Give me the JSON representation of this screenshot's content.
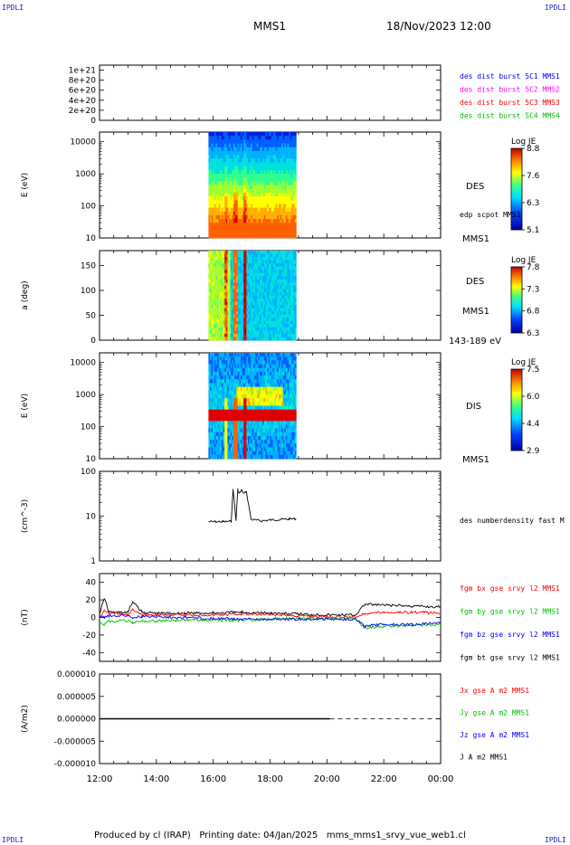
{
  "corner_labels": [
    "IPDLI",
    "IPDLI",
    "IPDLI",
    "IPDLI"
  ],
  "header": {
    "spacecraft": "MMS1",
    "datetime": "18/Nov/2023 12:00"
  },
  "footer": {
    "text": "Produced by cl (IRAP)   Printing date: 04/Jan/2025   mms_mms1_srvy_vue_web1.cl"
  },
  "colors": {
    "c1": "#0000ff",
    "c2": "#ff00ff",
    "c3": "#ff0000",
    "c4": "#00c000",
    "bx": "#ff0000",
    "by": "#00c000",
    "bz": "#0000ff",
    "bt": "#000000"
  },
  "chart_data": [
    {
      "type": "line",
      "panel": "dist-burst",
      "ylim": [
        0,
        1.1e+21
      ],
      "yticks": [
        "0",
        "2e+20",
        "4e+20",
        "6e+20",
        "8e+20",
        "1e+21"
      ],
      "series": [
        {
          "name": "des dist burst 5C1 MMS1"
        },
        {
          "name": "des dist burst 5C2 MMS2"
        },
        {
          "name": "des dist burst 5C3 MMS3"
        },
        {
          "name": "des dist burst 5C4 MMS4"
        }
      ]
    },
    {
      "type": "heatmap",
      "panel": "des-energy",
      "ylabel": "E (eV)",
      "yscale": "log",
      "ylim": [
        10,
        20000
      ],
      "yticks": [
        "10",
        "100",
        "1000",
        "10000"
      ],
      "x_coverage": [
        "15:50",
        "18:55"
      ],
      "label": "DES",
      "sublabel": "edp scpot MMS1",
      "footer_label": "MMS1",
      "colorbar": {
        "title": "Log JE",
        "ticks": [
          "8.8",
          "7.6",
          "6.3",
          "5.1"
        ]
      }
    },
    {
      "type": "heatmap",
      "panel": "des-pitch",
      "ylabel": "a (deg)",
      "ylim": [
        0,
        180
      ],
      "yticks": [
        "0",
        "50",
        "100",
        "150"
      ],
      "x_coverage": [
        "15:50",
        "18:55"
      ],
      "label": "DES",
      "sublabel": "MMS1",
      "footer_label": "143-189 eV",
      "colorbar": {
        "title": "Log JE",
        "ticks": [
          "7.8",
          "7.3",
          "6.8",
          "6.3"
        ]
      }
    },
    {
      "type": "heatmap",
      "panel": "dis-energy",
      "ylabel": "E (eV)",
      "yscale": "log",
      "ylim": [
        10,
        20000
      ],
      "yticks": [
        "10",
        "100",
        "1000",
        "10000"
      ],
      "x_coverage": [
        "15:50",
        "18:55"
      ],
      "label": "DIS",
      "footer_label": "MMS1",
      "colorbar": {
        "title": "Log JE",
        "ticks": [
          "7.5",
          "6.0",
          "4.4",
          "2.9"
        ]
      }
    },
    {
      "type": "line",
      "panel": "density",
      "ylabel": "(cm^-3)",
      "yscale": "log",
      "ylim": [
        1,
        100
      ],
      "yticks": [
        "1",
        "10",
        "100"
      ],
      "series": [
        {
          "name": "des numberdensity fast M",
          "x": [
            "15:50",
            "16:20",
            "16:38",
            "16:42",
            "16:48",
            "16:52",
            "16:55",
            "17:00",
            "17:05",
            "17:10",
            "17:20",
            "17:40",
            "18:00",
            "18:20",
            "18:40",
            "18:55"
          ],
          "y": [
            7.5,
            7.5,
            7.6,
            40,
            8,
            40,
            32,
            38,
            32,
            35,
            8.5,
            7.8,
            8.2,
            8.4,
            8.6,
            8.8
          ]
        }
      ]
    },
    {
      "type": "line",
      "panel": "fgm",
      "ylabel": "(nT)",
      "ylim": [
        -50,
        50
      ],
      "yticks": [
        "-40",
        "-20",
        "0",
        "20",
        "40"
      ],
      "series": [
        {
          "name": "fgm bx gse srvy l2 MMS1",
          "x": [
            "12:00",
            "12:10",
            "12:20",
            "13:00",
            "13:10",
            "13:30",
            "14:00",
            "15:00",
            "16:00",
            "17:00",
            "18:00",
            "19:00",
            "20:00",
            "21:00",
            "21:20",
            "22:00",
            "23:00",
            "00:00"
          ],
          "y": [
            0,
            8,
            5,
            3,
            10,
            3,
            3,
            3,
            3,
            4,
            3,
            2,
            1,
            0,
            5,
            6,
            6,
            5
          ]
        },
        {
          "name": "fgm by gse srvy l2 MMS1",
          "x": [
            "12:00",
            "12:10",
            "12:20",
            "13:00",
            "13:10",
            "13:30",
            "14:00",
            "15:00",
            "16:00",
            "17:00",
            "18:00",
            "19:00",
            "20:00",
            "21:00",
            "21:20",
            "22:00",
            "23:00",
            "00:00"
          ],
          "y": [
            -5,
            -8,
            -4,
            -4,
            -6,
            -4,
            -4,
            -3,
            -3,
            -3,
            -2,
            -1,
            -1,
            -1,
            -12,
            -10,
            -9,
            -8
          ]
        },
        {
          "name": "fgm bz gse srvy l2 MMS1",
          "x": [
            "12:00",
            "12:10",
            "12:20",
            "13:00",
            "13:10",
            "13:30",
            "14:00",
            "15:00",
            "16:00",
            "17:00",
            "18:00",
            "19:00",
            "20:00",
            "21:00",
            "21:20",
            "22:00",
            "23:00",
            "00:00"
          ],
          "y": [
            2,
            0,
            2,
            2,
            0,
            1,
            1,
            0,
            -1,
            -2,
            -2,
            -2,
            -2,
            -2,
            -10,
            -8,
            -8,
            -6
          ]
        },
        {
          "name": "fgm bt gse srvy l2 MMS1",
          "x": [
            "12:00",
            "12:10",
            "12:20",
            "13:00",
            "13:10",
            "13:30",
            "14:00",
            "15:00",
            "16:00",
            "17:00",
            "18:00",
            "19:00",
            "20:00",
            "21:00",
            "21:20",
            "22:00",
            "23:00",
            "00:00"
          ],
          "y": [
            5,
            22,
            6,
            6,
            18,
            6,
            5,
            5,
            5,
            6,
            5,
            4,
            3,
            3,
            15,
            14,
            13,
            12
          ]
        }
      ]
    },
    {
      "type": "line",
      "panel": "current",
      "ylabel": "(A/m2)",
      "ylim": [
        -1e-05,
        1e-05
      ],
      "yticks": [
        "-0.000010",
        "-0.000005",
        "0.000000",
        "0.000005",
        "0.000010"
      ],
      "series": [
        {
          "name": "Jx gse A m2 MMS1"
        },
        {
          "name": "Jy gse A m2 MMS1"
        },
        {
          "name": "Jz gse A m2 MMS1"
        },
        {
          "name": "J A m2 MMS1"
        }
      ]
    }
  ],
  "xaxis": {
    "range": [
      "12:00",
      "00:00"
    ],
    "ticks": [
      "12:00",
      "14:00",
      "16:00",
      "18:00",
      "20:00",
      "22:00",
      "00:00"
    ]
  }
}
